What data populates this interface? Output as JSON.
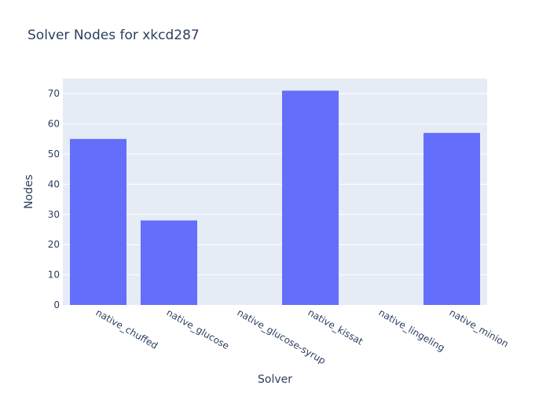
{
  "chart_data": {
    "type": "bar",
    "title": "Solver Nodes for xkcd287",
    "xlabel": "Solver",
    "ylabel": "Nodes",
    "categories": [
      "native_chuffed",
      "native_glucose",
      "native_glucose-syrup",
      "native_kissat",
      "native_lingeling",
      "native_minion"
    ],
    "values": [
      55,
      28,
      0,
      71,
      0,
      57
    ],
    "ylim": [
      0,
      75
    ],
    "yticks": [
      0,
      10,
      20,
      30,
      40,
      50,
      60,
      70
    ],
    "grid": true,
    "legend": "none",
    "colors": {
      "bar": "#636efa",
      "plot_bg": "#e5ecf6",
      "grid": "#ffffff",
      "text": "#2a3f5f"
    }
  }
}
